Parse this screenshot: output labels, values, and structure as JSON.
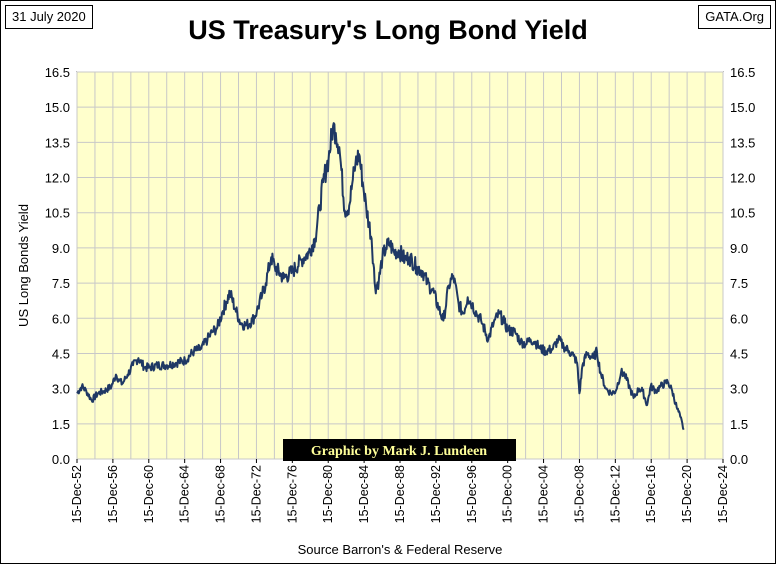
{
  "header": {
    "date": "31 July 2020",
    "site": "GATA.Org",
    "title": "US Treasury's Long Bond Yield"
  },
  "chart_data": {
    "type": "line",
    "title": "US Treasury's Long Bond Yield",
    "ylabel": "US Long Bonds Yield",
    "xlabel": "Source Barron's & Federal Reserve",
    "credit": "Graphic by Mark J. Lundeen",
    "ylim": [
      0,
      16.5
    ],
    "xlim": [
      1952.96,
      2024.96
    ],
    "y_ticks": [
      "0.0",
      "1.5",
      "3.0",
      "4.5",
      "6.0",
      "7.5",
      "9.0",
      "10.5",
      "12.0",
      "13.5",
      "15.0",
      "16.5"
    ],
    "x_ticks": [
      "15-Dec-52",
      "15-Dec-56",
      "15-Dec-60",
      "15-Dec-64",
      "15-Dec-68",
      "15-Dec-72",
      "15-Dec-76",
      "15-Dec-80",
      "15-Dec-84",
      "15-Dec-88",
      "15-Dec-92",
      "15-Dec-96",
      "15-Dec-00",
      "15-Dec-04",
      "15-Dec-08",
      "15-Dec-12",
      "15-Dec-16",
      "15-Dec-20",
      "15-Dec-24"
    ],
    "grid": true,
    "background_color": "#FFFFCC",
    "line_color": "#1F3864",
    "series": [
      {
        "x": [
          1952.96,
          1953.5,
          1954.0,
          1954.6,
          1955.3,
          1956.0,
          1956.8,
          1957.3,
          1957.6,
          1958.0,
          1958.6,
          1959.2,
          1959.8,
          1960.5,
          1961.0,
          1962.0,
          1963.0,
          1964.0,
          1965.0,
          1966.0,
          1966.8,
          1967.5,
          1968.0,
          1968.6,
          1969.2,
          1969.6,
          1970.0,
          1970.6,
          1971.2,
          1971.8,
          1972.5,
          1973.0,
          1973.6,
          1974.0,
          1974.6,
          1975.0,
          1976.0,
          1977.0,
          1978.0,
          1978.8,
          1979.5,
          1980.0,
          1980.4,
          1980.8,
          1981.0,
          1981.5,
          1981.8,
          1982.2,
          1982.8,
          1983.3,
          1983.7,
          1984.0,
          1984.4,
          1984.8,
          1985.2,
          1985.8,
          1986.2,
          1986.6,
          1987.0,
          1987.4,
          1987.8,
          1988.3,
          1988.8,
          1989.5,
          1990.0,
          1990.8,
          1991.5,
          1992.0,
          1992.6,
          1993.3,
          1993.8,
          1994.4,
          1994.9,
          1995.5,
          1996.0,
          1996.5,
          1997.0,
          1997.5,
          1998.0,
          1998.8,
          1999.4,
          2000.0,
          2000.6,
          2001.0,
          2001.8,
          2002.4,
          2003.0,
          2003.5,
          2004.0,
          2004.6,
          2005.2,
          2006.0,
          2006.6,
          2007.2,
          2007.8,
          2008.3,
          2008.7,
          2008.96,
          2009.3,
          2009.8,
          2010.5,
          2010.9,
          2011.3,
          2011.9,
          2012.5,
          2013.0,
          2013.6,
          2014.0,
          2014.6,
          2015.0,
          2015.6,
          2016.0,
          2016.5,
          2016.9,
          2017.5,
          2018.0,
          2018.8,
          2019.3,
          2019.8,
          2020.2,
          2020.58
        ],
        "y": [
          2.8,
          3.1,
          2.9,
          2.5,
          2.8,
          2.9,
          3.1,
          3.6,
          3.4,
          3.2,
          3.6,
          4.0,
          4.3,
          3.9,
          3.9,
          4.0,
          4.0,
          4.1,
          4.2,
          4.6,
          4.7,
          5.1,
          5.4,
          5.6,
          6.3,
          6.7,
          7.1,
          6.4,
          5.8,
          5.7,
          5.9,
          6.3,
          7.0,
          7.5,
          8.6,
          8.2,
          7.7,
          8.0,
          8.5,
          8.8,
          9.4,
          10.7,
          11.8,
          12.5,
          12.8,
          14.2,
          13.9,
          13.3,
          10.6,
          10.8,
          11.9,
          12.6,
          13.0,
          11.8,
          10.7,
          9.4,
          7.3,
          7.6,
          8.6,
          9.0,
          9.2,
          8.8,
          8.9,
          8.5,
          8.6,
          8.2,
          8.0,
          7.5,
          7.2,
          6.4,
          5.9,
          7.4,
          7.8,
          6.6,
          6.2,
          6.9,
          6.6,
          6.2,
          5.9,
          5.1,
          5.8,
          6.2,
          5.8,
          5.5,
          5.4,
          5.0,
          4.9,
          5.1,
          5.0,
          4.7,
          4.6,
          4.7,
          5.1,
          4.8,
          4.6,
          4.4,
          4.1,
          2.8,
          4.0,
          4.5,
          4.3,
          4.6,
          3.7,
          3.0,
          2.8,
          2.9,
          3.7,
          3.6,
          3.0,
          2.6,
          3.0,
          2.9,
          2.3,
          3.1,
          2.9,
          3.1,
          3.3,
          2.9,
          2.2,
          1.8,
          1.25
        ]
      }
    ]
  }
}
